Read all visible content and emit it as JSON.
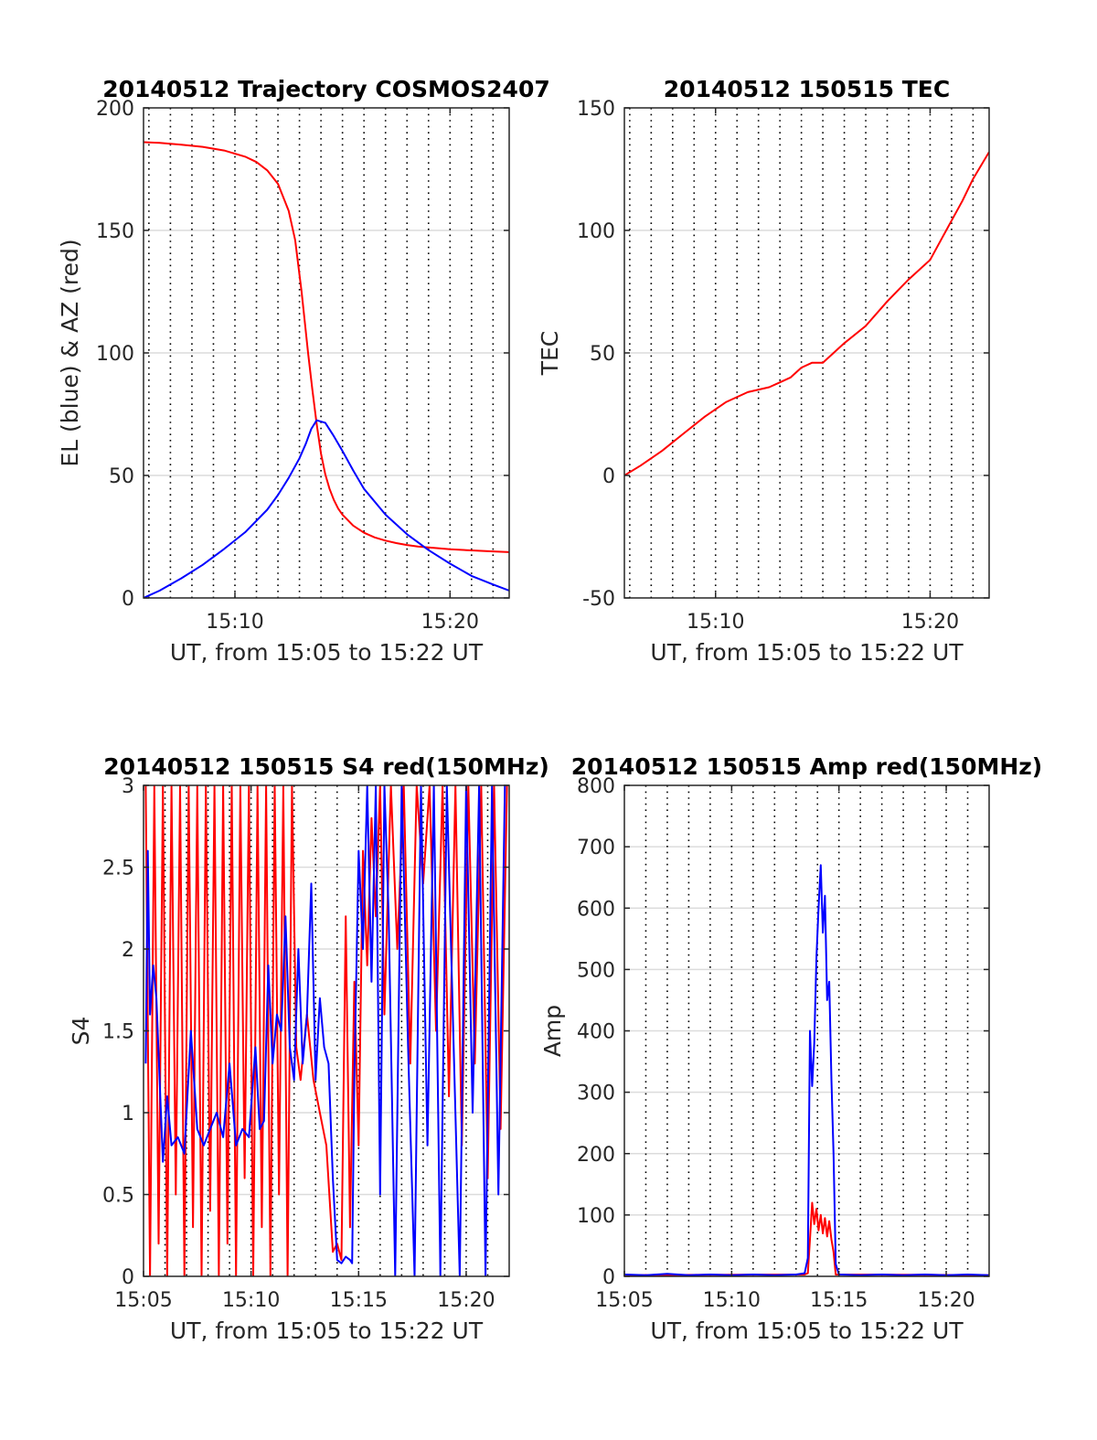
{
  "figure": {
    "date": "20140512",
    "satellite": "COSMOS2407"
  },
  "colors": {
    "red": "#ff0000",
    "blue": "#0000ff",
    "frame": "#262626",
    "grid_h": "#dcdcdc",
    "grid_v": "#000000"
  },
  "chart_data": [
    {
      "id": "trajectory",
      "type": "line",
      "title": "20140512 Trajectory COSMOS2407",
      "xlabel": "UT, from 15:05 to 15:22 UT",
      "ylabel": "EL (blue) & AZ (red)",
      "xlim": [
        5.75,
        22.75
      ],
      "ylim": [
        0,
        200
      ],
      "xticks": [
        10,
        20
      ],
      "xtick_labels": [
        "15:10",
        "15:20"
      ],
      "yticks": [
        0,
        50,
        100,
        150,
        200
      ],
      "ytick_labels": [
        "0",
        "50",
        "100",
        "150",
        "200"
      ],
      "vgrid": [
        6,
        7,
        8,
        9,
        10,
        11,
        12,
        13,
        14,
        15,
        16,
        17,
        18,
        19,
        20,
        21,
        22
      ],
      "grid": true,
      "series": [
        {
          "color": "red",
          "x": [
            5.75,
            6.5,
            7.5,
            8.5,
            9.5,
            10.5,
            11.0,
            11.5,
            12.0,
            12.5,
            12.8,
            13.1,
            13.4,
            13.6,
            13.8,
            14.0,
            14.2,
            14.4,
            14.6,
            14.8,
            15.0,
            15.5,
            16.0,
            16.5,
            17.0,
            17.5,
            18.0,
            18.5,
            19.0,
            20.0,
            21.0,
            22.0,
            22.75
          ],
          "y": [
            186,
            185.7,
            185,
            184.1,
            182.6,
            180,
            177.9,
            174.5,
            169,
            158,
            146,
            125,
            100,
            85,
            71,
            59,
            50.5,
            44.5,
            40,
            36.5,
            34,
            29.5,
            26.6,
            24.7,
            23.4,
            22.4,
            21.6,
            21,
            20.6,
            19.9,
            19.4,
            19.0,
            18.7
          ]
        },
        {
          "color": "blue",
          "x": [
            5.75,
            6.5,
            7.5,
            8.5,
            9.5,
            10.5,
            11.5,
            12.0,
            12.5,
            13.0,
            13.3,
            13.55,
            13.8,
            14.2,
            14.6,
            15.0,
            15.5,
            16.0,
            17.0,
            18.0,
            19.0,
            20.0,
            21.0,
            22.0,
            22.75
          ],
          "y": [
            0,
            3,
            8,
            13.5,
            20,
            27,
            36,
            42,
            49,
            57,
            63,
            69,
            72.5,
            71.5,
            66,
            60,
            52,
            44.5,
            34,
            26,
            19.5,
            14,
            9,
            5.5,
            3
          ]
        }
      ]
    },
    {
      "id": "tec",
      "type": "line",
      "title": "20140512 150515 TEC",
      "xlabel": "UT, from 15:05 to 15:22 UT",
      "ylabel": "TEC",
      "xlim": [
        5.75,
        22.75
      ],
      "ylim": [
        -50,
        150
      ],
      "xticks": [
        10,
        20
      ],
      "xtick_labels": [
        "15:10",
        "15:20"
      ],
      "yticks": [
        -50,
        0,
        50,
        100,
        150
      ],
      "ytick_labels": [
        "-50",
        "0",
        "50",
        "100",
        "150"
      ],
      "vgrid": [
        6,
        7,
        8,
        9,
        10,
        11,
        12,
        13,
        14,
        15,
        16,
        17,
        18,
        19,
        20,
        21,
        22
      ],
      "grid": true,
      "series": [
        {
          "color": "red",
          "x": [
            5.75,
            6.5,
            7.5,
            8.5,
            9.5,
            10.5,
            11.5,
            12.5,
            13.0,
            13.5,
            14.0,
            14.5,
            15.0,
            16.0,
            17.0,
            18.0,
            19.0,
            20.0,
            20.5,
            21.0,
            21.5,
            22.0,
            22.75
          ],
          "y": [
            0,
            4,
            10,
            17,
            24,
            30,
            34,
            36,
            38,
            40,
            44,
            46,
            46,
            54,
            61,
            71,
            80,
            88,
            96,
            104,
            112,
            121,
            132
          ]
        }
      ]
    },
    {
      "id": "s4",
      "type": "line",
      "title": "20140512 150515 S4 red(150MHz)",
      "xlabel": "UT, from 15:05 to 15:22 UT",
      "ylabel": "S4",
      "xlim": [
        5,
        22
      ],
      "ylim": [
        0,
        3
      ],
      "xticks": [
        5,
        10,
        15,
        20
      ],
      "xtick_labels": [
        "15:05",
        "15:10",
        "15:15",
        "15:20"
      ],
      "yticks": [
        0,
        0.5,
        1,
        1.5,
        2,
        2.5,
        3
      ],
      "ytick_labels": [
        "0",
        "0.5",
        "1",
        "1.5",
        "2",
        "2.5",
        "3"
      ],
      "vgrid": [
        6,
        7,
        8,
        9,
        10,
        11,
        12,
        13,
        14,
        15,
        16,
        17,
        18,
        19,
        20,
        21
      ],
      "grid": true,
      "series": [
        {
          "color": "red",
          "x": [
            5.1,
            5.3,
            5.5,
            5.7,
            5.9,
            6.1,
            6.3,
            6.5,
            6.7,
            6.9,
            7.1,
            7.3,
            7.5,
            7.7,
            7.9,
            8.1,
            8.3,
            8.5,
            8.7,
            8.9,
            9.1,
            9.3,
            9.5,
            9.7,
            9.9,
            10.1,
            10.3,
            10.5,
            10.7,
            10.9,
            11.1,
            11.3,
            11.5,
            11.7,
            11.9,
            12.1,
            12.3,
            12.6,
            12.9,
            13.2,
            13.5,
            13.8,
            14.0,
            14.2,
            14.4,
            14.6,
            14.8,
            15.0,
            15.2,
            15.4,
            15.6,
            15.8,
            16.0,
            16.2,
            16.5,
            16.8,
            17.1,
            17.4,
            17.7,
            18.0,
            18.3,
            18.6,
            18.9,
            19.2,
            19.5,
            19.8,
            20.1,
            20.4,
            20.7,
            21.0,
            21.3,
            21.6,
            21.9
          ],
          "y": [
            3,
            0,
            3,
            0.2,
            3,
            0,
            3,
            0.5,
            3,
            0,
            3,
            0.3,
            3,
            0,
            3,
            0.4,
            3,
            0,
            3,
            0.2,
            3,
            0,
            3,
            0.6,
            3,
            0,
            3,
            0.3,
            3,
            0,
            3,
            0.5,
            3,
            0,
            3,
            1.4,
            1.2,
            1.6,
            1.2,
            1.0,
            0.8,
            0.15,
            0.2,
            0.1,
            2.2,
            0.3,
            1.8,
            0.8,
            2.6,
            1.9,
            2.8,
            2.2,
            3,
            1.6,
            3,
            2.0,
            3,
            1.3,
            3,
            2.4,
            3,
            1.5,
            3,
            1.1,
            3,
            0.8,
            3,
            1.3,
            3,
            0.6,
            3,
            0.9,
            3
          ]
        },
        {
          "color": "blue",
          "x": [
            5.1,
            5.2,
            5.3,
            5.45,
            5.6,
            5.75,
            5.9,
            6.1,
            6.3,
            6.6,
            6.9,
            7.2,
            7.5,
            7.8,
            8.1,
            8.4,
            8.7,
            9.0,
            9.3,
            9.6,
            9.9,
            10.2,
            10.4,
            10.6,
            10.8,
            11.0,
            11.2,
            11.4,
            11.6,
            11.8,
            12.0,
            12.2,
            12.4,
            12.6,
            12.8,
            13.0,
            13.2,
            13.4,
            13.6,
            13.8,
            14.0,
            14.2,
            14.4,
            14.6,
            14.7,
            14.8,
            15.0,
            15.2,
            15.4,
            15.6,
            15.8,
            16.0,
            16.2,
            16.4,
            16.7,
            17.0,
            17.3,
            17.6,
            17.9,
            18.2,
            18.5,
            18.8,
            19.1,
            19.4,
            19.7,
            20.0,
            20.3,
            20.6,
            20.9,
            21.2,
            21.5,
            21.8
          ],
          "y": [
            1.3,
            2.6,
            1.6,
            1.9,
            1.7,
            1.2,
            0.7,
            1.1,
            0.8,
            0.85,
            0.75,
            1.5,
            0.9,
            0.8,
            0.9,
            1.0,
            0.85,
            1.3,
            0.8,
            0.9,
            0.85,
            1.4,
            0.9,
            0.95,
            1.9,
            1.3,
            1.6,
            1.5,
            2.2,
            1.4,
            1.2,
            2.0,
            1.3,
            1.6,
            2.4,
            1.2,
            1.7,
            1.4,
            1.3,
            0.6,
            0.1,
            0.08,
            0.12,
            0.1,
            0.08,
            1.2,
            2.6,
            2.0,
            3,
            1.8,
            3,
            0.5,
            3,
            2.2,
            0,
            3,
            1.4,
            0,
            3,
            0.8,
            3,
            0,
            3,
            1.5,
            0,
            3,
            1.0,
            3,
            0,
            3,
            0.5,
            3
          ]
        }
      ]
    },
    {
      "id": "amp",
      "type": "line",
      "title": "20140512 150515 Amp red(150MHz)",
      "xlabel": "UT, from 15:05 to 15:22 UT",
      "ylabel": "Amp",
      "xlim": [
        5,
        22
      ],
      "ylim": [
        0,
        800
      ],
      "xticks": [
        5,
        10,
        15,
        20
      ],
      "xtick_labels": [
        "15:05",
        "15:10",
        "15:15",
        "15:20"
      ],
      "yticks": [
        0,
        100,
        200,
        300,
        400,
        500,
        600,
        700,
        800
      ],
      "ytick_labels": [
        "0",
        "100",
        "200",
        "300",
        "400",
        "500",
        "600",
        "700",
        "800"
      ],
      "vgrid": [
        6,
        7,
        8,
        9,
        10,
        11,
        12,
        13,
        14,
        15,
        16,
        17,
        18,
        19,
        20,
        21
      ],
      "grid": true,
      "series": [
        {
          "color": "red",
          "x": [
            5.0,
            13.4,
            13.55,
            13.65,
            13.75,
            13.85,
            13.95,
            14.05,
            14.15,
            14.25,
            14.35,
            14.45,
            14.55,
            14.65,
            14.75,
            14.85,
            22.0
          ],
          "y": [
            2,
            3,
            5,
            60,
            120,
            85,
            110,
            75,
            100,
            70,
            95,
            65,
            90,
            60,
            40,
            3,
            2
          ]
        },
        {
          "color": "blue",
          "x": [
            5.0,
            6.0,
            7.0,
            8.0,
            9.0,
            10.0,
            11.0,
            12.0,
            13.0,
            13.4,
            13.55,
            13.65,
            13.75,
            13.85,
            13.95,
            14.05,
            14.15,
            14.25,
            14.35,
            14.45,
            14.55,
            14.65,
            14.75,
            14.85,
            15.0,
            16.0,
            17.0,
            18.0,
            19.0,
            20.0,
            21.0,
            22.0
          ],
          "y": [
            3,
            2,
            4,
            2,
            3,
            2,
            3,
            2,
            3,
            5,
            30,
            400,
            310,
            380,
            520,
            600,
            670,
            560,
            620,
            450,
            480,
            320,
            200,
            20,
            3,
            2,
            3,
            2,
            3,
            2,
            3,
            2
          ]
        }
      ]
    }
  ]
}
